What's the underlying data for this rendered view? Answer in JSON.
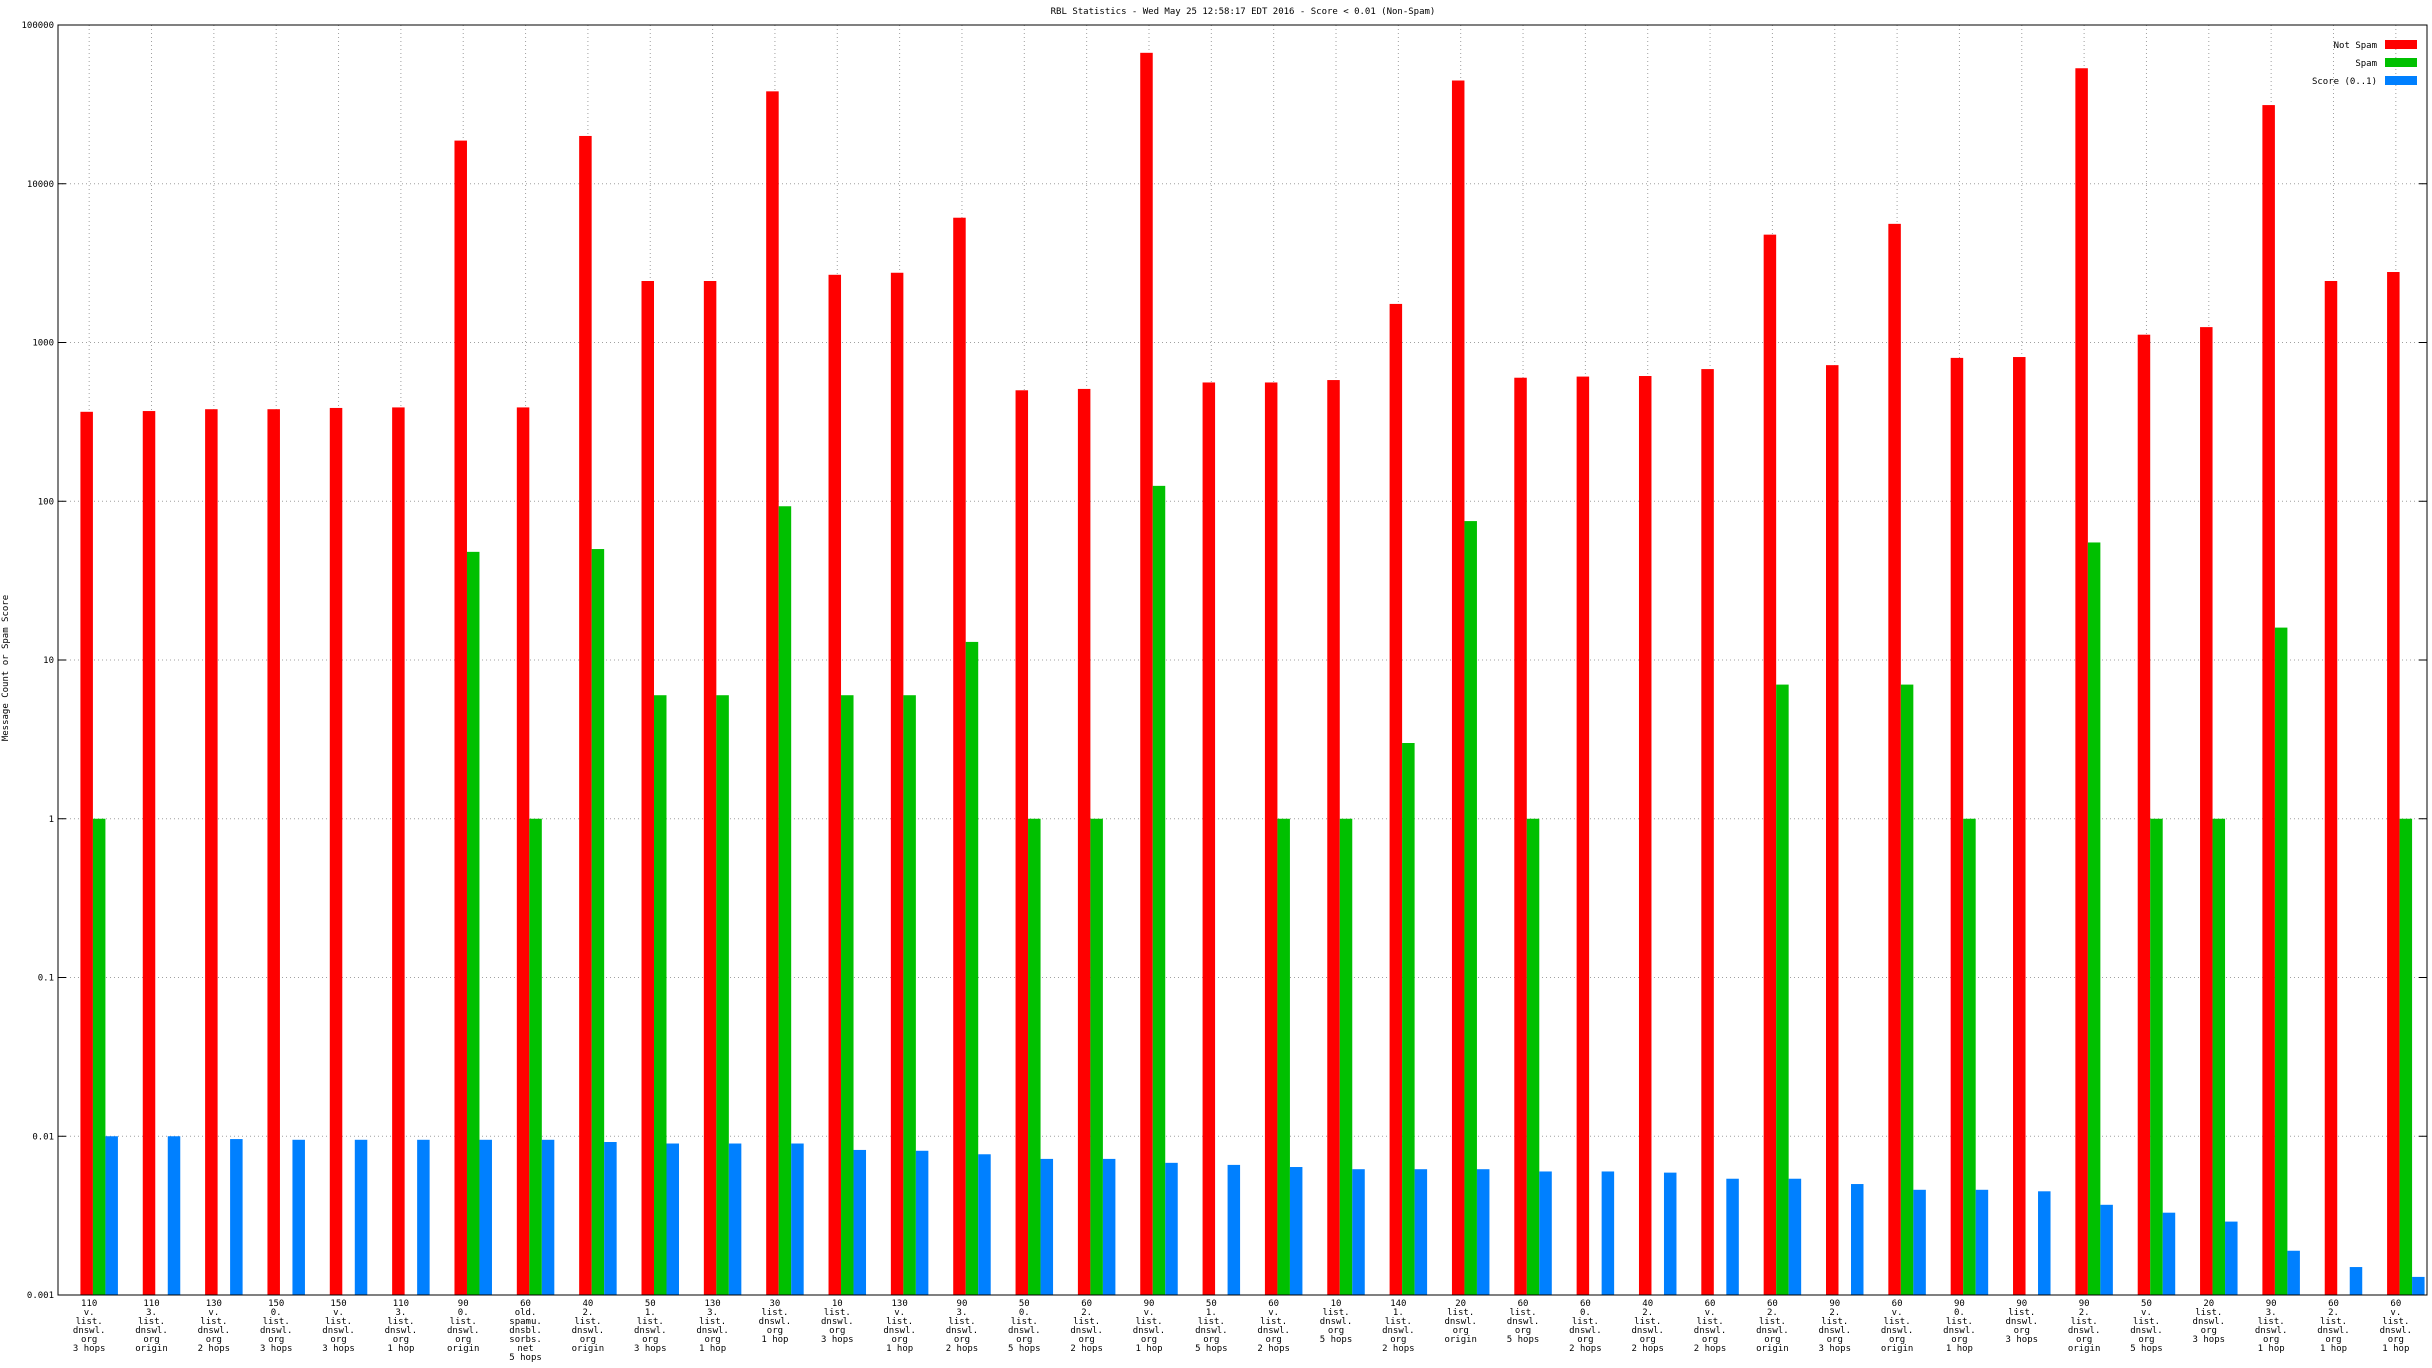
{
  "chart_data": {
    "type": "bar",
    "title": "RBL Statistics - Wed May 25 12:58:17 EDT 2016 - Score < 0.01 (Non-Spam)",
    "y_label": "Message Count or Spam Score",
    "log_scale": true,
    "grid": true,
    "legend": "top-right",
    "ylim": [
      0.001,
      100000
    ],
    "yticks": [
      0.001,
      0.01,
      0.1,
      1,
      10,
      100,
      1000,
      10000,
      100000
    ],
    "categories": [
      [
        "110",
        "v.",
        "list.",
        "dnswl.",
        "org",
        "3 hops"
      ],
      [
        "110",
        "3.",
        "list.",
        "dnswl.",
        "org",
        "origin"
      ],
      [
        "130",
        "v.",
        "list.",
        "dnswl.",
        "org",
        "2 hops"
      ],
      [
        "150",
        "0.",
        "list.",
        "dnswl.",
        "org",
        "3 hops"
      ],
      [
        "150",
        "v.",
        "list.",
        "dnswl.",
        "org",
        "3 hops"
      ],
      [
        "110",
        "3.",
        "list.",
        "dnswl.",
        "org",
        "1 hop"
      ],
      [
        "90",
        "0.",
        "list.",
        "dnswl.",
        "org",
        "origin"
      ],
      [
        "60",
        "old.",
        "spamu.",
        "dnsbl.",
        "sorbs.",
        "net",
        "5 hops"
      ],
      [
        "40",
        "2.",
        "list.",
        "dnswl.",
        "org",
        "origin"
      ],
      [
        "50",
        "1.",
        "list.",
        "dnswl.",
        "org",
        "3 hops"
      ],
      [
        "130",
        "3.",
        "list.",
        "dnswl.",
        "org",
        "1 hop"
      ],
      [
        "30",
        "list.",
        "dnswl.",
        "org",
        "1 hop"
      ],
      [
        "10",
        "list.",
        "dnswl.",
        "org",
        "3 hops"
      ],
      [
        "130",
        "v.",
        "list.",
        "dnswl.",
        "org",
        "1 hop"
      ],
      [
        "90",
        "3.",
        "list.",
        "dnswl.",
        "org",
        "2 hops"
      ],
      [
        "50",
        "0.",
        "list.",
        "dnswl.",
        "org",
        "5 hops"
      ],
      [
        "60",
        "2.",
        "list.",
        "dnswl.",
        "org",
        "2 hops"
      ],
      [
        "90",
        "v.",
        "list.",
        "dnswl.",
        "org",
        "1 hop"
      ],
      [
        "50",
        "1.",
        "list.",
        "dnswl.",
        "org",
        "5 hops"
      ],
      [
        "60",
        "v.",
        "list.",
        "dnswl.",
        "org",
        "2 hops"
      ],
      [
        "10",
        "list.",
        "dnswl.",
        "org",
        "5 hops"
      ],
      [
        "140",
        "1.",
        "list.",
        "dnswl.",
        "org",
        "2 hops"
      ],
      [
        "20",
        "list.",
        "dnswl.",
        "org",
        "origin"
      ],
      [
        "60",
        "list.",
        "dnswl.",
        "org",
        "5 hops"
      ],
      [
        "60",
        "0.",
        "list.",
        "dnswl.",
        "org",
        "2 hops"
      ],
      [
        "40",
        "2.",
        "list.",
        "dnswl.",
        "org",
        "2 hops"
      ],
      [
        "60",
        "v.",
        "list.",
        "dnswl.",
        "org",
        "2 hops"
      ],
      [
        "60",
        "2.",
        "list.",
        "dnswl.",
        "org",
        "origin"
      ],
      [
        "90",
        "2.",
        "list.",
        "dnswl.",
        "org",
        "3 hops"
      ],
      [
        "60",
        "v.",
        "list.",
        "dnswl.",
        "org",
        "origin"
      ],
      [
        "90",
        "0.",
        "list.",
        "dnswl.",
        "org",
        "1 hop"
      ],
      [
        "90",
        "list.",
        "dnswl.",
        "org",
        "3 hops"
      ],
      [
        "90",
        "2.",
        "list.",
        "dnswl.",
        "org",
        "origin"
      ],
      [
        "50",
        "v.",
        "list.",
        "dnswl.",
        "org",
        "5 hops"
      ],
      [
        "20",
        "list.",
        "dnswl.",
        "org",
        "3 hops"
      ],
      [
        "90",
        "3.",
        "list.",
        "dnswl.",
        "org",
        "1 hop"
      ],
      [
        "60",
        "2.",
        "list.",
        "dnswl.",
        "org",
        "1 hop"
      ],
      [
        "60",
        "v.",
        "list.",
        "dnswl.",
        "org",
        "1 hop"
      ]
    ],
    "series": [
      {
        "name": "Not Spam",
        "color": "#ff0000",
        "values": [
          366,
          370,
          380,
          380,
          387,
          390,
          18700,
          390,
          20000,
          2440,
          2440,
          38200,
          2670,
          2750,
          6110,
          500,
          510,
          66800,
          560,
          560,
          580,
          1750,
          44700,
          600,
          610,
          615,
          680,
          4780,
          720,
          5590,
          800,
          810,
          53400,
          1120,
          1250,
          31300,
          2440,
          2780
        ]
      },
      {
        "name": "Spam",
        "color": "#00c000",
        "values": [
          1,
          null,
          null,
          null,
          null,
          null,
          48,
          1,
          50,
          6,
          6,
          93,
          6,
          6,
          13,
          1,
          1,
          125,
          null,
          1,
          1,
          3,
          75,
          1,
          null,
          null,
          null,
          7,
          null,
          7,
          1,
          null,
          55,
          1,
          1,
          16,
          null,
          1
        ]
      },
      {
        "name": "Score (0..1)",
        "color": "#0080ff",
        "values": [
          0.01,
          0.01,
          0.0096,
          0.0095,
          0.0095,
          0.0095,
          0.0095,
          0.0095,
          0.0092,
          0.009,
          0.009,
          0.009,
          0.0082,
          0.0081,
          0.0077,
          0.0072,
          0.0072,
          0.0068,
          0.0066,
          0.0064,
          0.0062,
          0.0062,
          0.0062,
          0.006,
          0.006,
          0.0059,
          0.0054,
          0.0054,
          0.005,
          0.0046,
          0.0046,
          0.0045,
          0.0037,
          0.0033,
          0.0029,
          0.0019,
          0.0015,
          0.0013
        ]
      }
    ]
  }
}
